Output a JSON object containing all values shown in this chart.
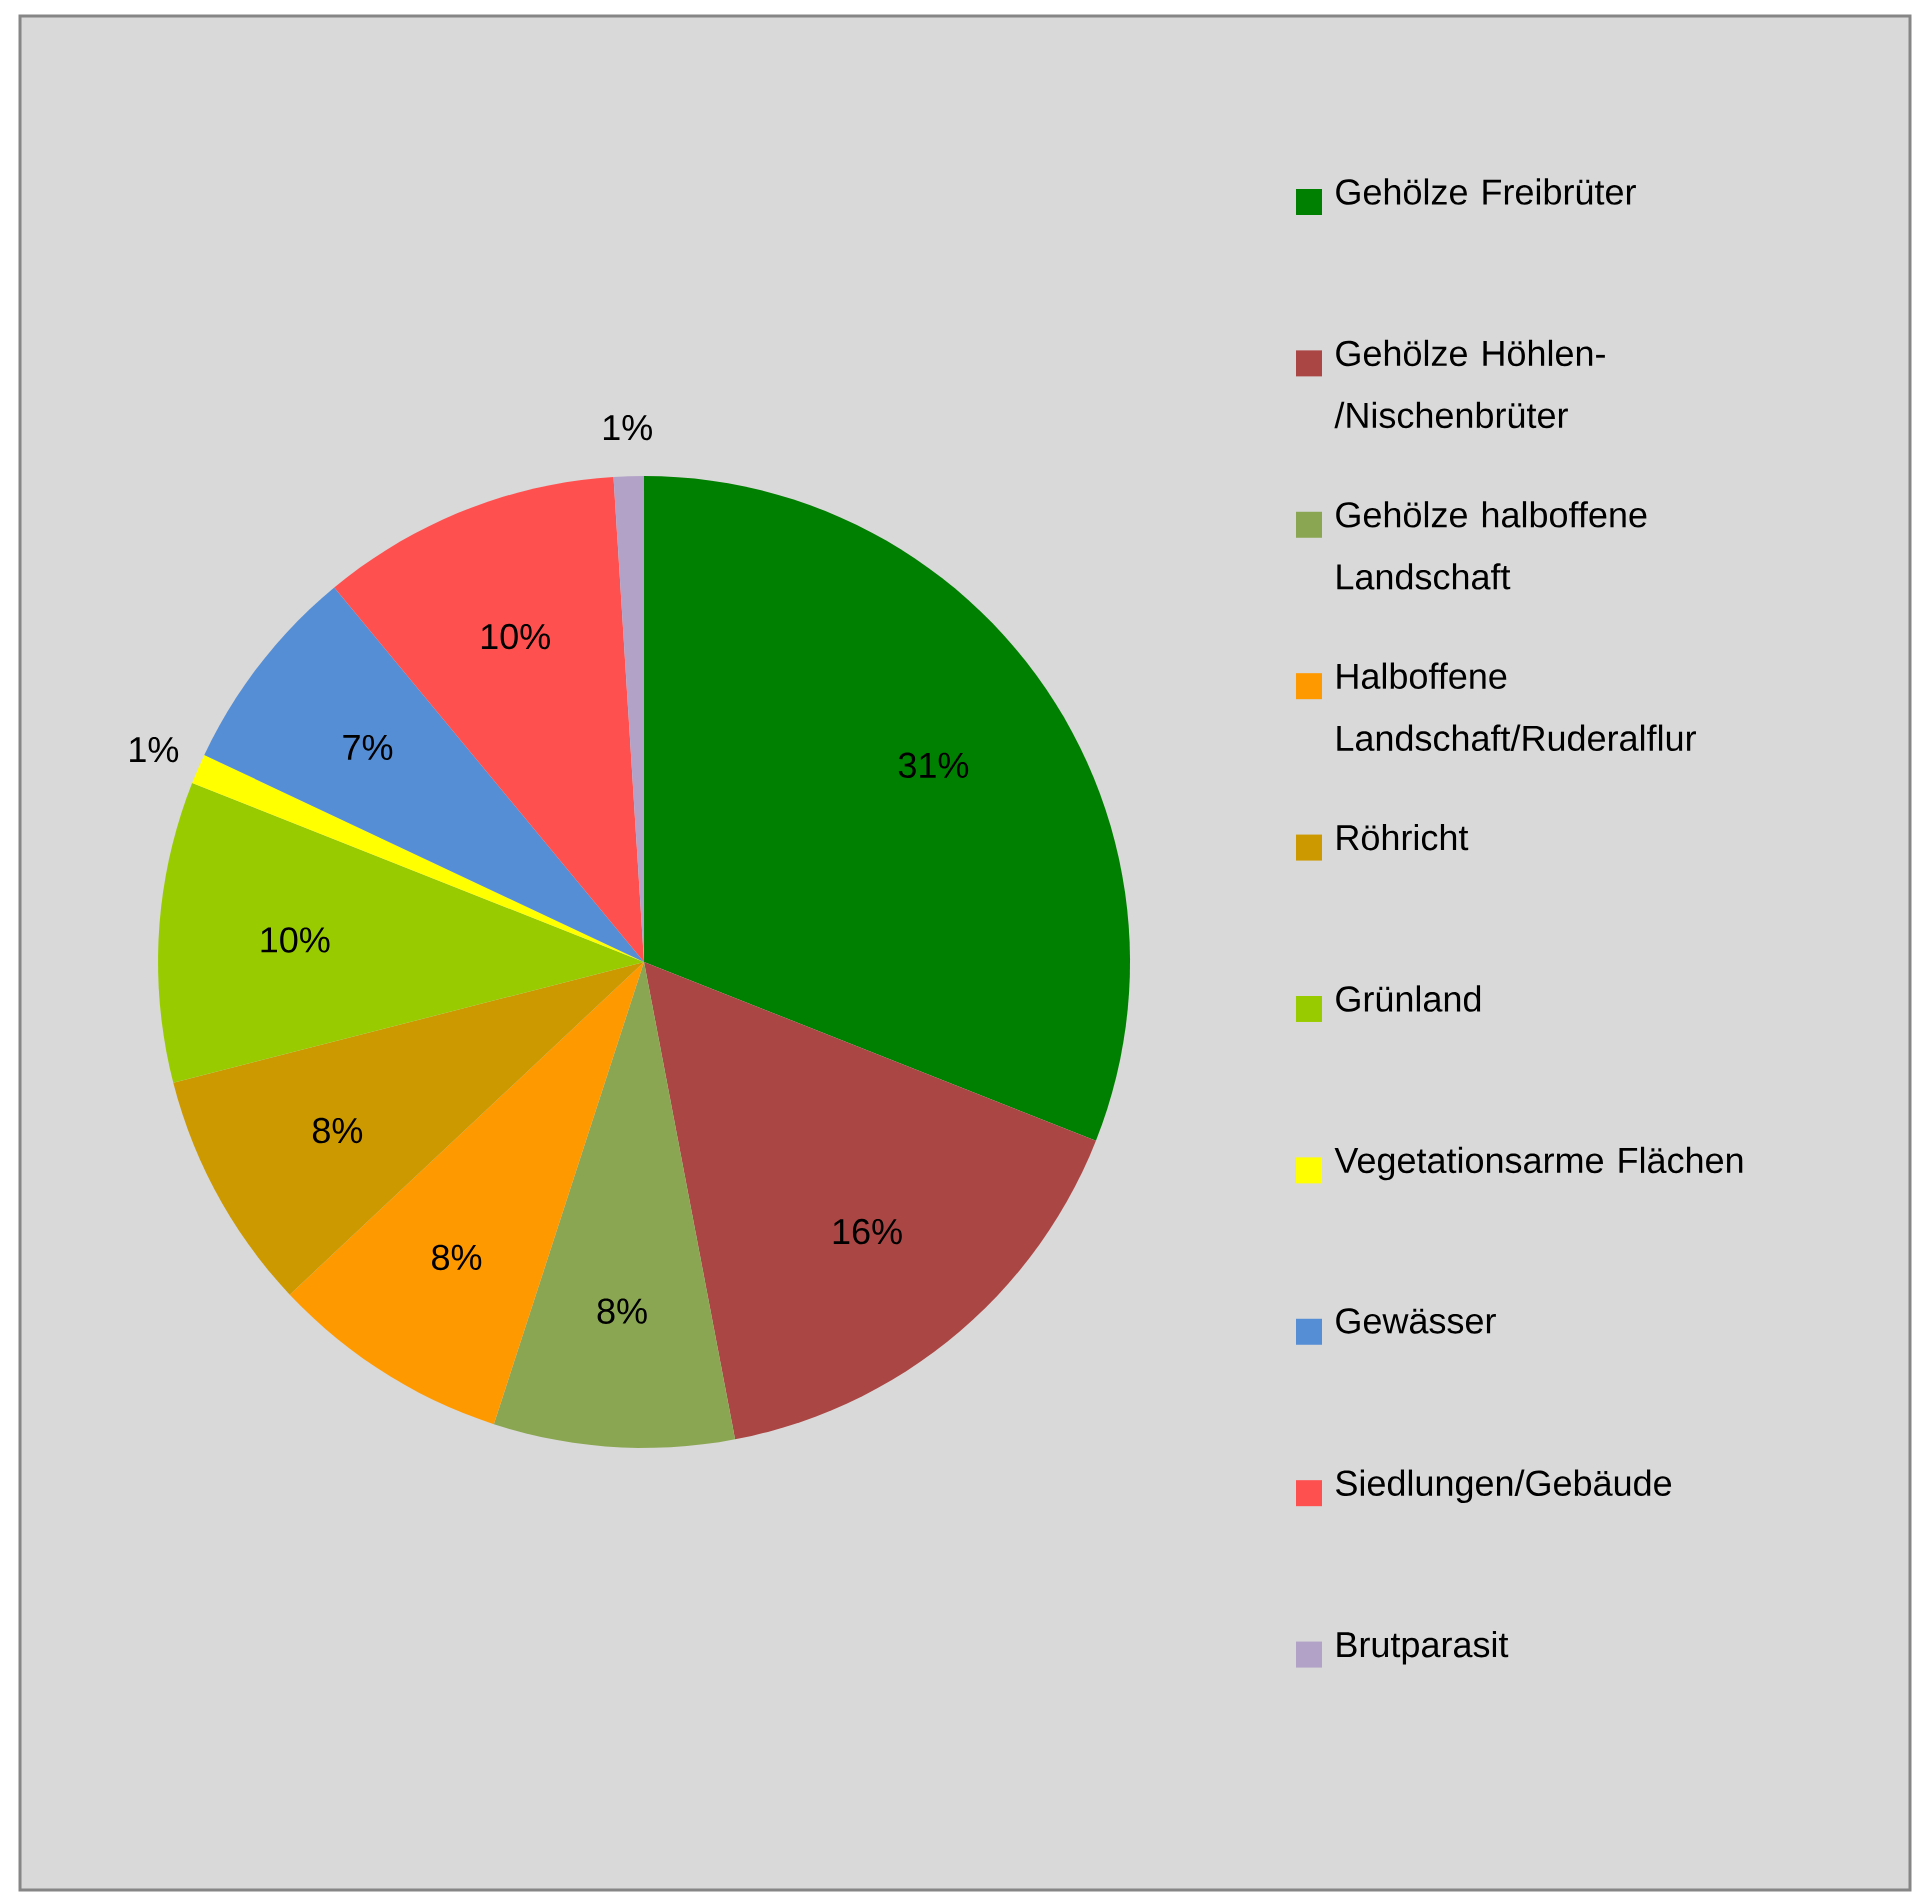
{
  "chart_data": {
    "type": "pie",
    "categories": [
      "Gehölze Freibrüter",
      "Gehölze Höhlen-/Nischenbrüter",
      "Gehölze halboffene Landschaft",
      "Halboffene Landschaft/Ruderalflur",
      "Röhricht",
      "Grünland",
      "Vegetationsarme Flächen",
      "Gewässer",
      "Siedlungen/Gebäude",
      "Brutparasit"
    ],
    "values": [
      31,
      16,
      8,
      8,
      8,
      10,
      1,
      7,
      10,
      1
    ],
    "value_labels": [
      "31%",
      "16%",
      "8%",
      "8%",
      "8%",
      "10%",
      "1%",
      "7%",
      "10%",
      "1%"
    ],
    "colors": [
      "#008000",
      "#aa4644",
      "#8ba653",
      "#ff9900",
      "#cc9900",
      "#99cc00",
      "#ffff00",
      "#558ed5",
      "#ff5050",
      "#b3a2c7"
    ],
    "legend": "right"
  }
}
